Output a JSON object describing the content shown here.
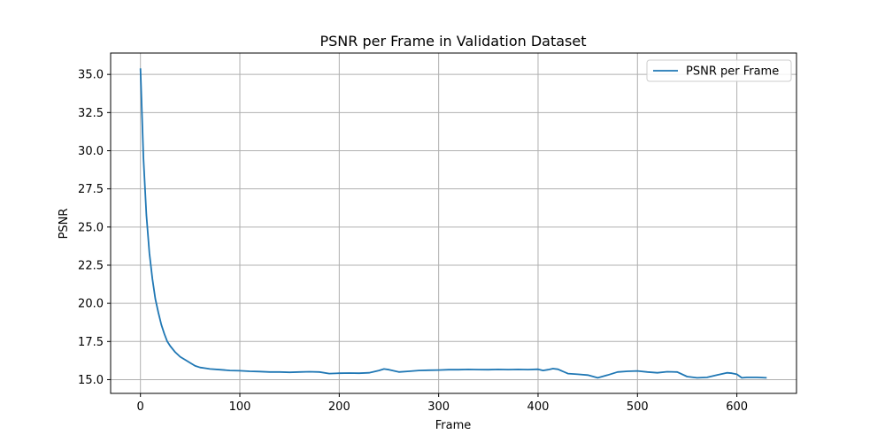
{
  "chart_data": {
    "type": "line",
    "title": "PSNR per Frame in Validation Dataset",
    "xlabel": "Frame",
    "ylabel": "PSNR",
    "xlim": [
      -30,
      660
    ],
    "ylim": [
      14.1,
      36.4
    ],
    "xticks": [
      0,
      100,
      200,
      300,
      400,
      500,
      600
    ],
    "yticks": [
      15.0,
      17.5,
      20.0,
      22.5,
      25.0,
      27.5,
      30.0,
      32.5,
      35.0
    ],
    "ytick_labels": [
      "15.0",
      "17.5",
      "20.0",
      "22.5",
      "25.0",
      "27.5",
      "30.0",
      "32.5",
      "35.0"
    ],
    "grid": true,
    "legend_position": "top-right",
    "series_color": "#1f77b4",
    "series": [
      {
        "name": "PSNR per Frame",
        "x": [
          0,
          3,
          6,
          9,
          12,
          15,
          18,
          21,
          24,
          27,
          30,
          35,
          40,
          45,
          50,
          55,
          60,
          65,
          70,
          80,
          90,
          100,
          110,
          120,
          130,
          140,
          150,
          160,
          170,
          180,
          190,
          200,
          210,
          220,
          230,
          240,
          245,
          250,
          260,
          270,
          280,
          290,
          300,
          310,
          320,
          330,
          340,
          350,
          360,
          370,
          380,
          390,
          400,
          405,
          410,
          415,
          420,
          430,
          440,
          450,
          460,
          470,
          480,
          490,
          500,
          510,
          520,
          530,
          540,
          550,
          560,
          570,
          580,
          590,
          595,
          600,
          605,
          610,
          620,
          630
        ],
        "y": [
          35.4,
          29.5,
          25.8,
          23.3,
          21.6,
          20.3,
          19.4,
          18.6,
          18.0,
          17.5,
          17.2,
          16.8,
          16.5,
          16.3,
          16.1,
          15.9,
          15.8,
          15.75,
          15.7,
          15.65,
          15.6,
          15.58,
          15.55,
          15.53,
          15.5,
          15.5,
          15.48,
          15.5,
          15.52,
          15.5,
          15.4,
          15.42,
          15.43,
          15.42,
          15.45,
          15.6,
          15.7,
          15.65,
          15.5,
          15.55,
          15.6,
          15.62,
          15.63,
          15.65,
          15.65,
          15.67,
          15.66,
          15.65,
          15.67,
          15.66,
          15.67,
          15.66,
          15.68,
          15.6,
          15.65,
          15.72,
          15.68,
          15.4,
          15.35,
          15.3,
          15.12,
          15.3,
          15.5,
          15.55,
          15.57,
          15.5,
          15.45,
          15.52,
          15.5,
          15.2,
          15.12,
          15.15,
          15.3,
          15.45,
          15.42,
          15.35,
          15.12,
          15.15,
          15.15,
          15.12
        ]
      }
    ]
  }
}
